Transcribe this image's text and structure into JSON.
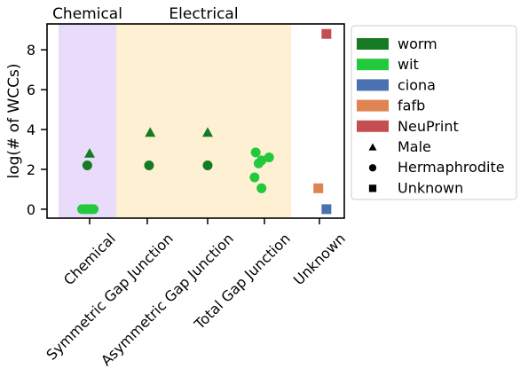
{
  "chart_data": {
    "type": "scatter",
    "ylabel": "log(# of WCCs)",
    "ylim": [
      -0.45,
      9.3
    ],
    "yticks": [
      0,
      2,
      4,
      6,
      8
    ],
    "categories": [
      "Chemical",
      "Symmetric Gap Junction",
      "Asymmetric Gap Junction",
      "Total Gap Junction",
      "Unknown"
    ],
    "shaded_regions": [
      {
        "label": "Chemical",
        "from_category": 0,
        "to_category": 0,
        "color": "#e9dcfa"
      },
      {
        "label": "Electrical",
        "from_category": 1,
        "to_category": 3,
        "color": "#fdf0d3"
      }
    ],
    "legend_position": "outside-right",
    "series": [
      {
        "name": "worm",
        "color": "#167a24",
        "points": [
          {
            "category": 0,
            "offset": 0.0,
            "y": 2.8,
            "marker": "Male"
          },
          {
            "category": 0,
            "offset": -0.04,
            "y": 2.2,
            "marker": "Hermaphrodite"
          },
          {
            "category": 1,
            "offset": 0.05,
            "y": 3.85,
            "marker": "Male"
          },
          {
            "category": 1,
            "offset": 0.03,
            "y": 2.2,
            "marker": "Hermaphrodite"
          },
          {
            "category": 2,
            "offset": 0.0,
            "y": 3.85,
            "marker": "Male"
          },
          {
            "category": 2,
            "offset": 0.0,
            "y": 2.2,
            "marker": "Hermaphrodite"
          }
        ]
      },
      {
        "name": "wit",
        "color": "#22c93c",
        "points": [
          {
            "category": 0,
            "offset": -0.13,
            "y": 0.0,
            "marker": "Hermaphrodite"
          },
          {
            "category": 0,
            "offset": -0.09,
            "y": 0.0,
            "marker": "Hermaphrodite"
          },
          {
            "category": 0,
            "offset": -0.05,
            "y": 0.0,
            "marker": "Hermaphrodite"
          },
          {
            "category": 0,
            "offset": -0.01,
            "y": 0.0,
            "marker": "Hermaphrodite"
          },
          {
            "category": 0,
            "offset": 0.03,
            "y": 0.0,
            "marker": "Hermaphrodite"
          },
          {
            "category": 0,
            "offset": 0.07,
            "y": 0.0,
            "marker": "Hermaphrodite"
          },
          {
            "category": 3,
            "offset": -0.15,
            "y": 2.85,
            "marker": "Hermaphrodite"
          },
          {
            "category": 3,
            "offset": -0.1,
            "y": 2.3,
            "marker": "Hermaphrodite"
          },
          {
            "category": 3,
            "offset": -0.05,
            "y": 2.45,
            "marker": "Hermaphrodite"
          },
          {
            "category": 3,
            "offset": 0.08,
            "y": 2.6,
            "marker": "Hermaphrodite"
          },
          {
            "category": 3,
            "offset": -0.17,
            "y": 1.6,
            "marker": "Hermaphrodite"
          },
          {
            "category": 3,
            "offset": -0.05,
            "y": 1.05,
            "marker": "Hermaphrodite"
          }
        ]
      },
      {
        "name": "ciona",
        "color": "#4a72b0",
        "points": [
          {
            "category": 4,
            "offset": 0.12,
            "y": 0.0,
            "marker": "Unknown"
          }
        ]
      },
      {
        "name": "fafb",
        "color": "#dd8452",
        "points": [
          {
            "category": 4,
            "offset": -0.02,
            "y": 1.05,
            "marker": "Unknown"
          }
        ]
      },
      {
        "name": "NeuPrint",
        "color": "#c44e52",
        "points": [
          {
            "category": 4,
            "offset": 0.12,
            "y": 8.8,
            "marker": "Unknown"
          }
        ]
      }
    ],
    "legend": {
      "colors": [
        {
          "label": "worm",
          "color": "#167a24"
        },
        {
          "label": "wit",
          "color": "#22c93c"
        },
        {
          "label": "ciona",
          "color": "#4a72b0"
        },
        {
          "label": "fafb",
          "color": "#dd8452"
        },
        {
          "label": "NeuPrint",
          "color": "#c44e52"
        }
      ],
      "markers": [
        {
          "label": "Male",
          "shape": "triangle"
        },
        {
          "label": "Hermaphrodite",
          "shape": "circle"
        },
        {
          "label": "Unknown",
          "shape": "square"
        }
      ]
    }
  }
}
